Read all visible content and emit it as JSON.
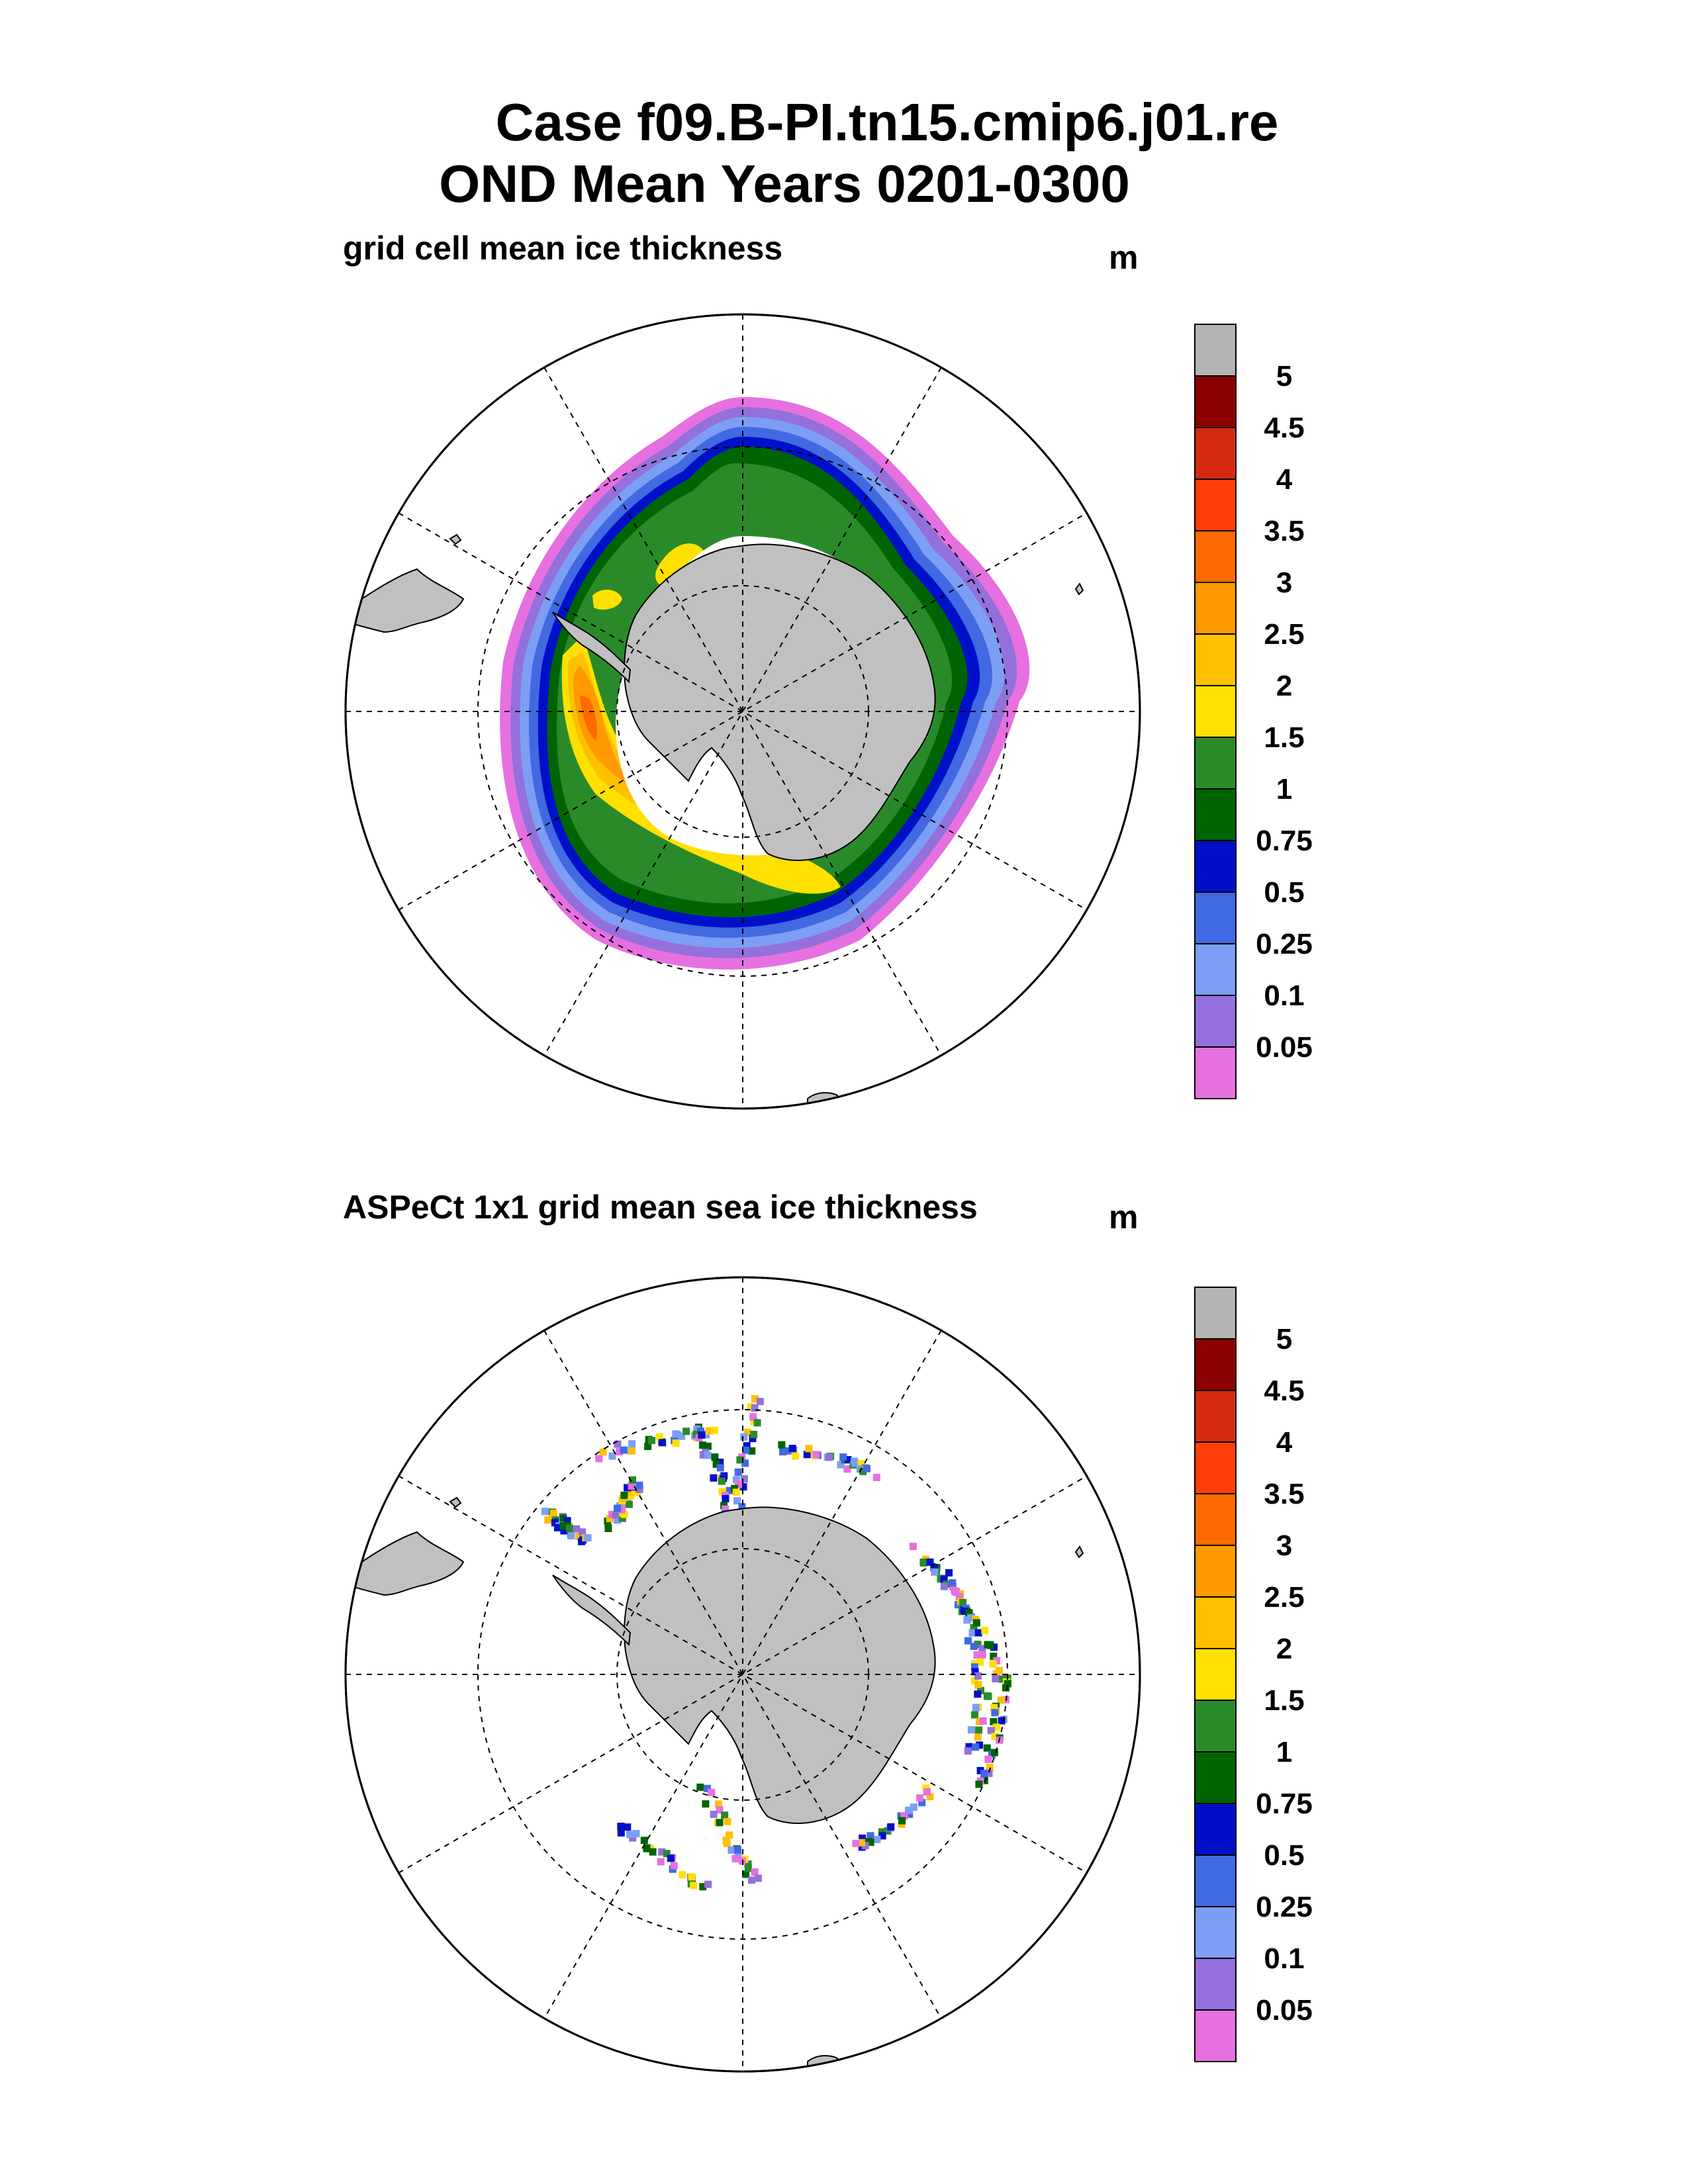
{
  "title_line1": "Case f09.B-PI.tn15.cmip6.j01.re",
  "title_line2": "OND Mean   Years 0201-0300",
  "units": "m",
  "colorbar": {
    "labels": [
      "5",
      "4.5",
      "4",
      "3.5",
      "3",
      "2.5",
      "2",
      "1.5",
      "1",
      "0.75",
      "0.5",
      "0.25",
      "0.1",
      "0.05"
    ],
    "colors": [
      "#b4b4b4",
      "#8b0000",
      "#d42a10",
      "#ff3e0a",
      "#ff6a00",
      "#ff9a00",
      "#ffc000",
      "#ffe000",
      "#2a8a2a",
      "#006400",
      "#0010c8",
      "#4169e1",
      "#7d9ef5",
      "#9370db",
      "#e670e0"
    ]
  },
  "colors": {
    "land": "#c0c0c0",
    "ocean": "#ffffff",
    "grid": "#000000"
  },
  "panels": [
    {
      "subtitle": "grid cell mean ice thickness",
      "units": "m"
    },
    {
      "subtitle": "ASPeCt 1x1 grid mean sea ice thickness",
      "units": "m"
    }
  ]
}
